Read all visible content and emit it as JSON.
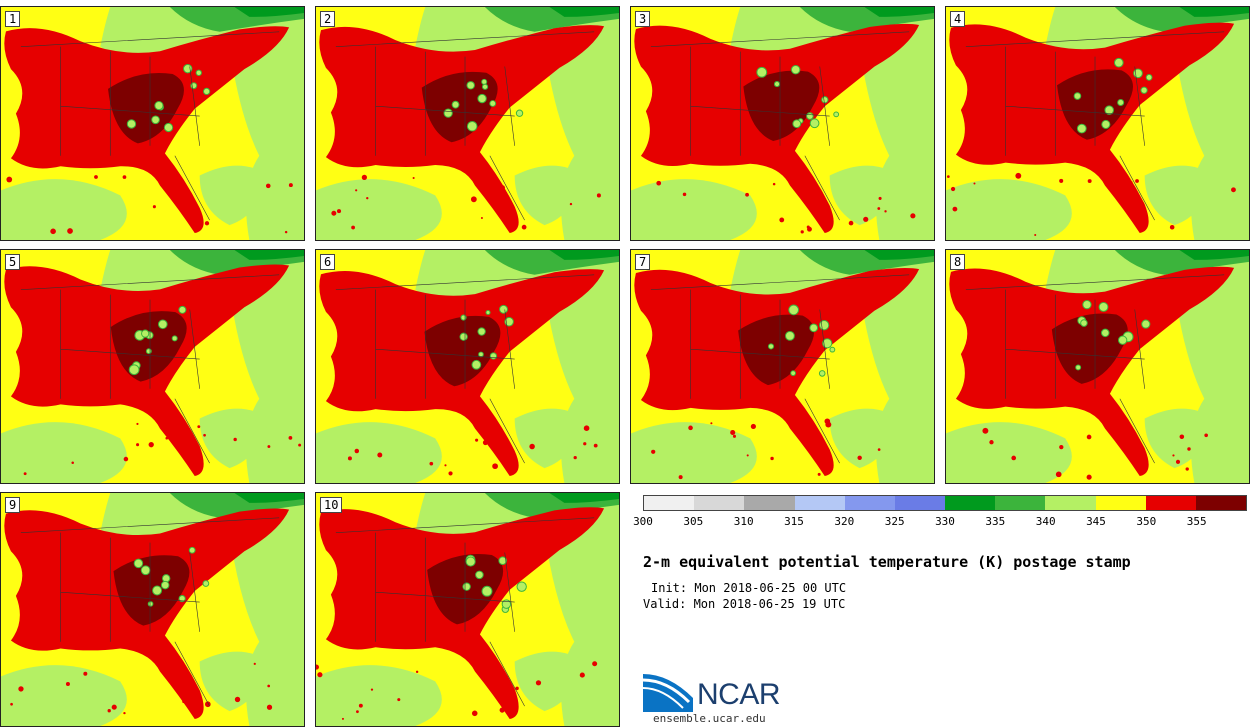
{
  "panels": [
    {
      "label": "1"
    },
    {
      "label": "2"
    },
    {
      "label": "3"
    },
    {
      "label": "4"
    },
    {
      "label": "5"
    },
    {
      "label": "6"
    },
    {
      "label": "7"
    },
    {
      "label": "8"
    },
    {
      "label": "9"
    },
    {
      "label": "10"
    }
  ],
  "colorbar": {
    "ticks": [
      "300",
      "305",
      "310",
      "315",
      "320",
      "325",
      "330",
      "335",
      "340",
      "345",
      "350",
      "355"
    ],
    "colors": [
      "#f0f0f0",
      "#d8d8d8",
      "#a9a9a9",
      "#b4c8f5",
      "#8498ee",
      "#6a7ce6",
      "#009a1e",
      "#3cb43c",
      "#b4f064",
      "#ffff14",
      "#e60000",
      "#7d0000"
    ]
  },
  "title": "2-m equivalent potential temperature (K) postage stamp",
  "init": "Init: Mon 2018-06-25 00 UTC",
  "valid": "Valid: Mon 2018-06-25 19 UTC",
  "logo": {
    "text": "NCAR",
    "url_text": "ensemble.ucar.edu"
  }
}
